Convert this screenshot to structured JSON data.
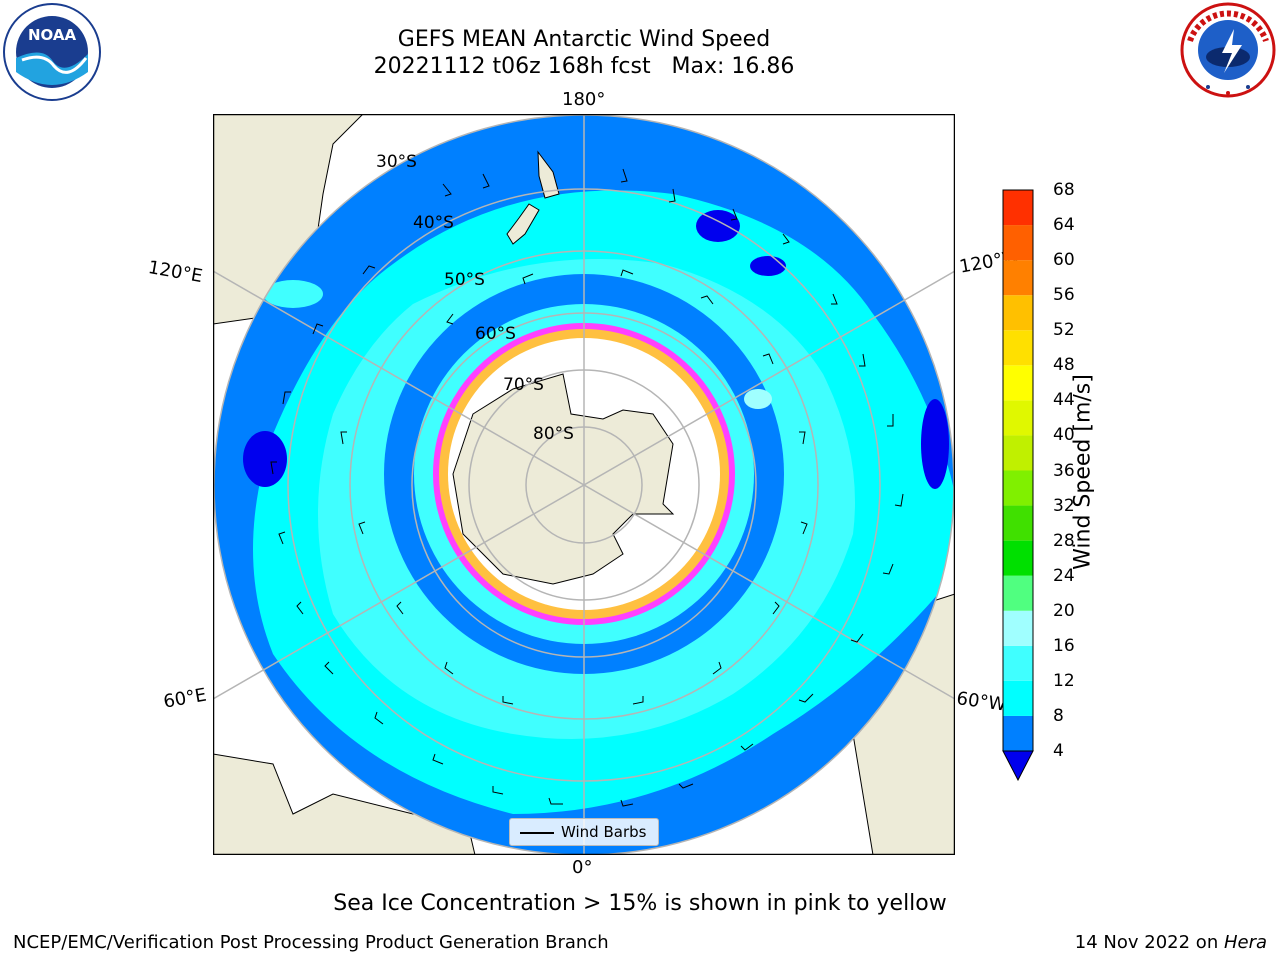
{
  "header": {
    "title": "GEFS MEAN Antarctic Wind Speed",
    "subtitle": "20221112 t06z 168h fcst   Max: 16.86"
  },
  "logos": {
    "left": "noaa-logo",
    "right": "national-weather-service-logo",
    "right_text": "NATIONAL WEATHER SERVICE"
  },
  "map": {
    "projection": "south-polar-stereographic",
    "longitude_labels": {
      "top": "180°",
      "bottom": "0°",
      "upper_left": "120°E",
      "upper_right": "120°W",
      "lower_left": "60°E",
      "lower_right": "60°W"
    },
    "latitude_labels": [
      "30°S",
      "40°S",
      "50°S",
      "60°S",
      "70°S",
      "80°S"
    ],
    "legend_label": "Wind Barbs",
    "colors": {
      "land": "#edebd8",
      "ice_free_background": "#ffffff",
      "speed_4_8": "#0080ff",
      "speed_below_4": "#0000ee",
      "speed_8_12": "#00ffff",
      "speed_12_16": "#40ffff",
      "speed_16_20": "#a0ffff",
      "sea_ice_edge": "#ff40ff",
      "sea_ice_inner": "#ffc040"
    }
  },
  "colorbar": {
    "label": "Wind Speed [m/s]",
    "ticks": [
      "4",
      "8",
      "12",
      "16",
      "20",
      "24",
      "28",
      "32",
      "36",
      "40",
      "44",
      "48",
      "52",
      "56",
      "60",
      "64",
      "68"
    ],
    "colors": [
      "#0080ff",
      "#00ffff",
      "#40ffff",
      "#a0ffff",
      "#50ff80",
      "#00e000",
      "#40e000",
      "#80f000",
      "#c0f000",
      "#e0f800",
      "#ffff00",
      "#ffe000",
      "#ffc000",
      "#ff8000",
      "#ff6000",
      "#ff3000",
      "#ff0000"
    ],
    "under_color": "#0000ee"
  },
  "caption": "Sea Ice Concentration > 15% is shown in pink to yellow",
  "footer": {
    "left": "NCEP/EMC/Verification Post Processing Product Generation Branch",
    "right_date": "14 Nov 2022 on ",
    "right_host": "Hera"
  }
}
